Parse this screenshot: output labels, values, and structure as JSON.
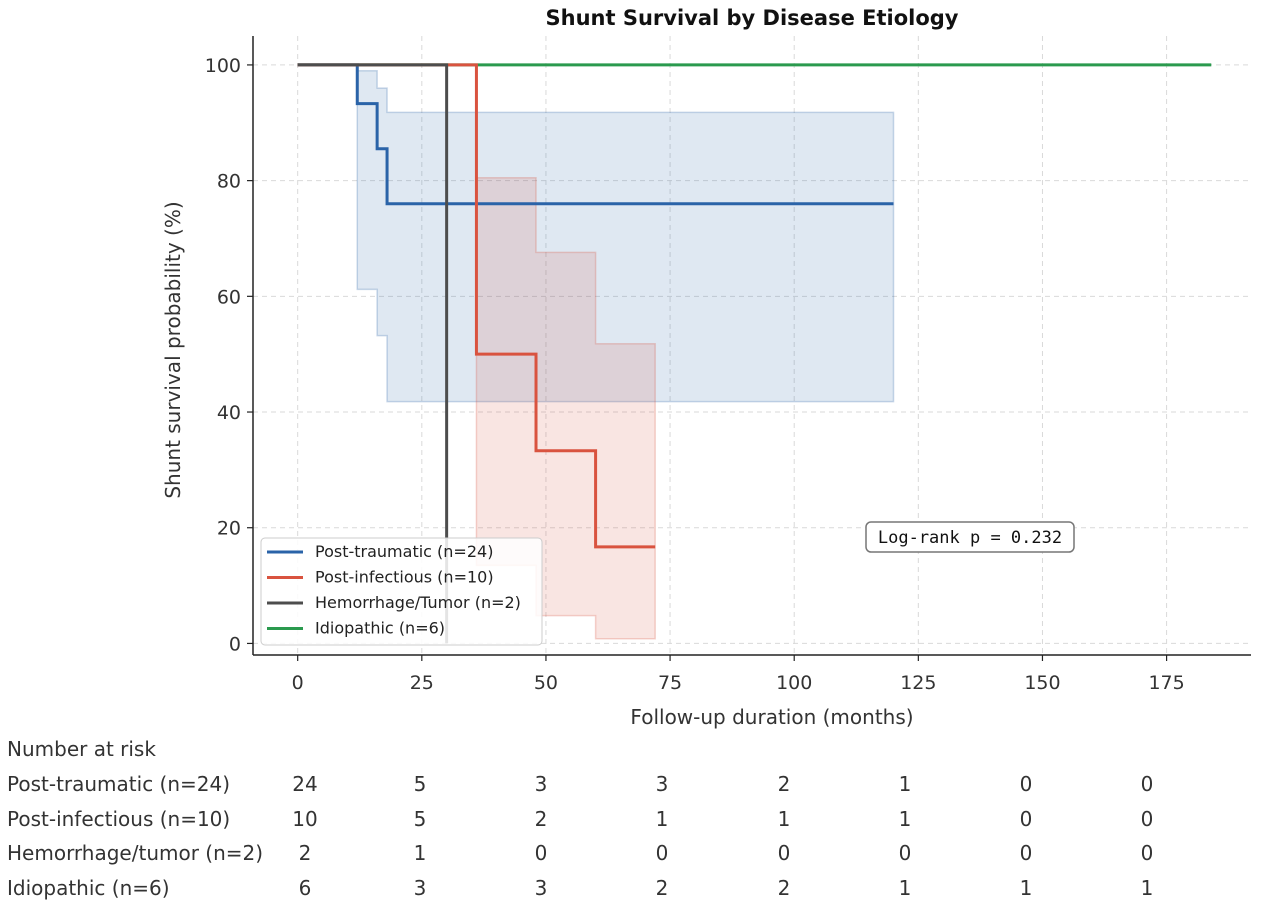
{
  "chart_data": {
    "type": "line",
    "subtype": "kaplan-meier",
    "title": "Shunt Survival by Disease Etiology",
    "xlabel": "Follow-up duration (months)",
    "ylabel": "Shunt survival probability (%)",
    "xlim": [
      -9,
      192
    ],
    "ylim": [
      -2,
      105
    ],
    "xticks": [
      0,
      25,
      50,
      75,
      100,
      125,
      150,
      175
    ],
    "yticks": [
      0,
      20,
      40,
      60,
      80,
      100
    ],
    "grid": true,
    "legend_position": "lower-left",
    "annotation": "Log-rank  p = 0.232",
    "series": [
      {
        "name": "Post-traumatic (n=24)",
        "color": "#2a63a8",
        "fill": "#2a63a8",
        "steps": [
          [
            0,
            100
          ],
          [
            12,
            93.3
          ],
          [
            16,
            85.5
          ],
          [
            18,
            76
          ],
          [
            120,
            76
          ]
        ],
        "ci_upper": [
          [
            12,
            99
          ],
          [
            16,
            96
          ],
          [
            18,
            91.8
          ],
          [
            120,
            91.8
          ]
        ],
        "ci_lower": [
          [
            12,
            61.2
          ],
          [
            16,
            53.2
          ],
          [
            18,
            41.8
          ],
          [
            120,
            41.8
          ]
        ]
      },
      {
        "name": "Post-infectious (n=10)",
        "color": "#d9533f",
        "fill": "#d9533f",
        "steps": [
          [
            0,
            100
          ],
          [
            36,
            50
          ],
          [
            48,
            33.3
          ],
          [
            60,
            16.7
          ],
          [
            72,
            16.7
          ]
        ],
        "ci_upper": [
          [
            36,
            80.5
          ],
          [
            48,
            67.6
          ],
          [
            60,
            51.8
          ],
          [
            72,
            51.8
          ]
        ],
        "ci_lower": [
          [
            36,
            13.5
          ],
          [
            48,
            4.8
          ],
          [
            60,
            0.8
          ],
          [
            72,
            0.8
          ]
        ]
      },
      {
        "name": "Hemorrhage/Tumor (n=2)",
        "color": "#4d4d4d",
        "steps": [
          [
            0,
            100
          ],
          [
            30,
            0
          ],
          [
            30,
            0
          ]
        ]
      },
      {
        "name": "Idiopathic (n=6)",
        "color": "#2a9a4e",
        "steps": [
          [
            0,
            100
          ],
          [
            184,
            100
          ]
        ]
      }
    ]
  },
  "risk_table": {
    "header": "Number at risk",
    "rows": [
      {
        "label": "Post-traumatic (n=24)",
        "values": [
          "24",
          "5",
          "3",
          "3",
          "2",
          "1",
          "0",
          "0"
        ]
      },
      {
        "label": "Post-infectious (n=10)",
        "values": [
          "10",
          "5",
          "2",
          "1",
          "1",
          "1",
          "0",
          "0"
        ]
      },
      {
        "label": "Hemorrhage/tumor (n=2)",
        "values": [
          "2",
          "1",
          "0",
          "0",
          "0",
          "0",
          "0",
          "0"
        ]
      },
      {
        "label": "Idiopathic (n=6)",
        "values": [
          "6",
          "3",
          "3",
          "2",
          "2",
          "1",
          "1",
          "1"
        ]
      }
    ]
  }
}
